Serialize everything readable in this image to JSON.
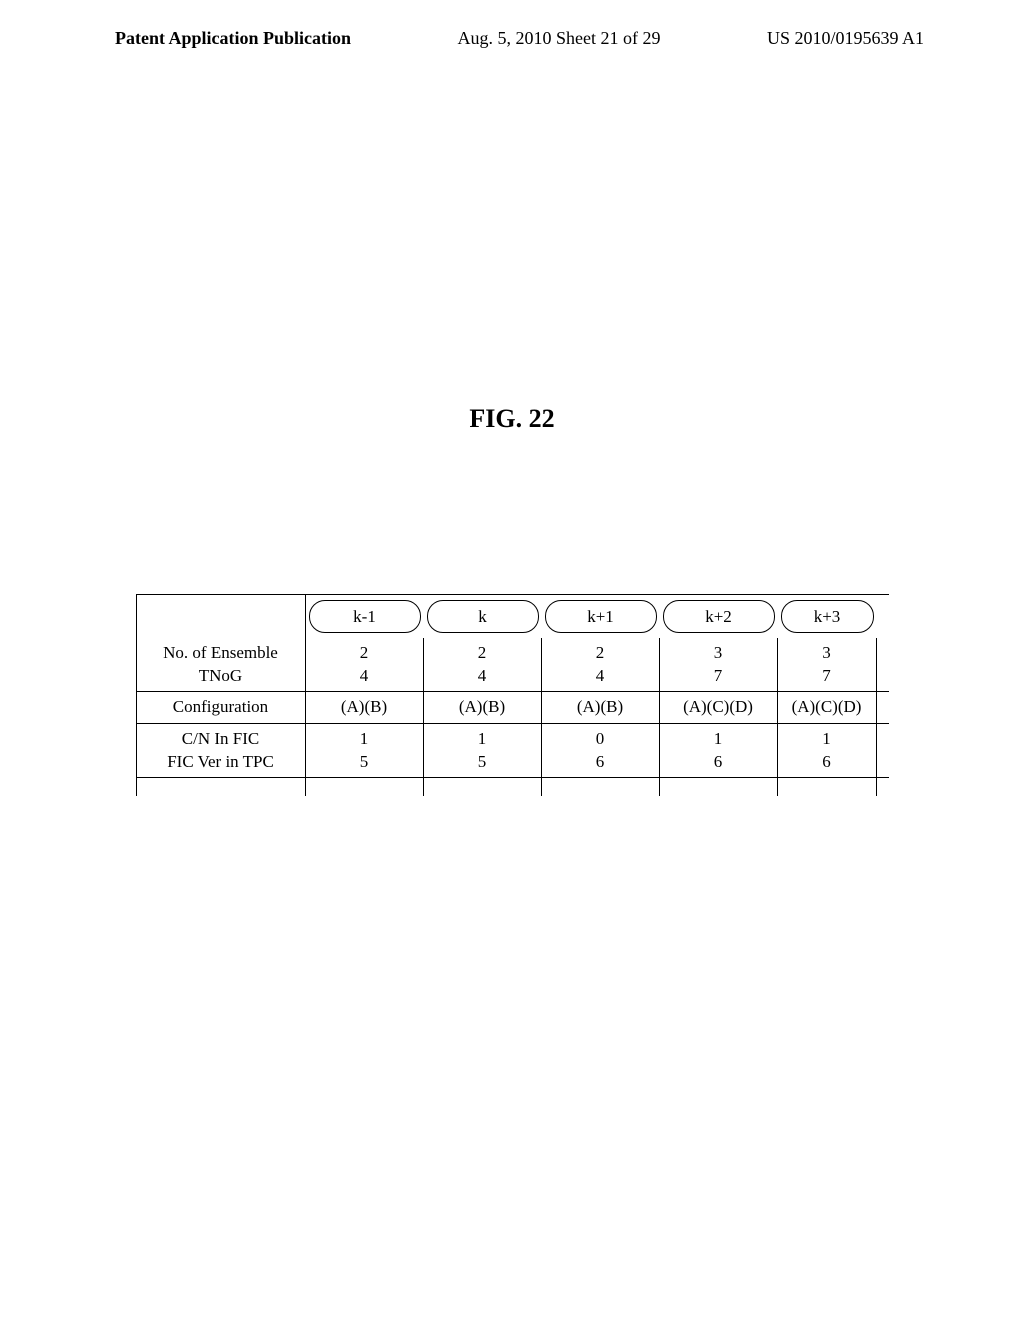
{
  "header": {
    "left": "Patent Application Publication",
    "center": "Aug. 5, 2010  Sheet 21 of 29",
    "right": "US 2010/0195639 A1"
  },
  "figure": {
    "title": "FIG. 22"
  },
  "table": {
    "timeline_labels": [
      "k-1",
      "k",
      "k+1",
      "k+2",
      "k+3"
    ],
    "rows": [
      {
        "label_lines": [
          "No. of Ensemble",
          "TNoG"
        ],
        "height_class": "h2",
        "values": [
          [
            "2",
            "4"
          ],
          [
            "2",
            "4"
          ],
          [
            "2",
            "4"
          ],
          [
            "3",
            "7"
          ],
          [
            "3",
            "7"
          ]
        ]
      },
      {
        "label_lines": [
          "Configuration"
        ],
        "height_class": "h3",
        "values": [
          [
            "(A)(B)"
          ],
          [
            "(A)(B)"
          ],
          [
            "(A)(B)"
          ],
          [
            "(A)(C)(D)"
          ],
          [
            "(A)(C)(D)"
          ]
        ]
      },
      {
        "label_lines": [
          "C/N In FIC",
          "FIC Ver in TPC"
        ],
        "height_class": "h4",
        "values": [
          [
            "1",
            "5"
          ],
          [
            "1",
            "5"
          ],
          [
            "0",
            "6"
          ],
          [
            "1",
            "6"
          ],
          [
            "1",
            "6"
          ]
        ]
      }
    ],
    "column_widths": [
      "wide",
      "wide",
      "wide",
      "wide",
      "narrow"
    ]
  }
}
